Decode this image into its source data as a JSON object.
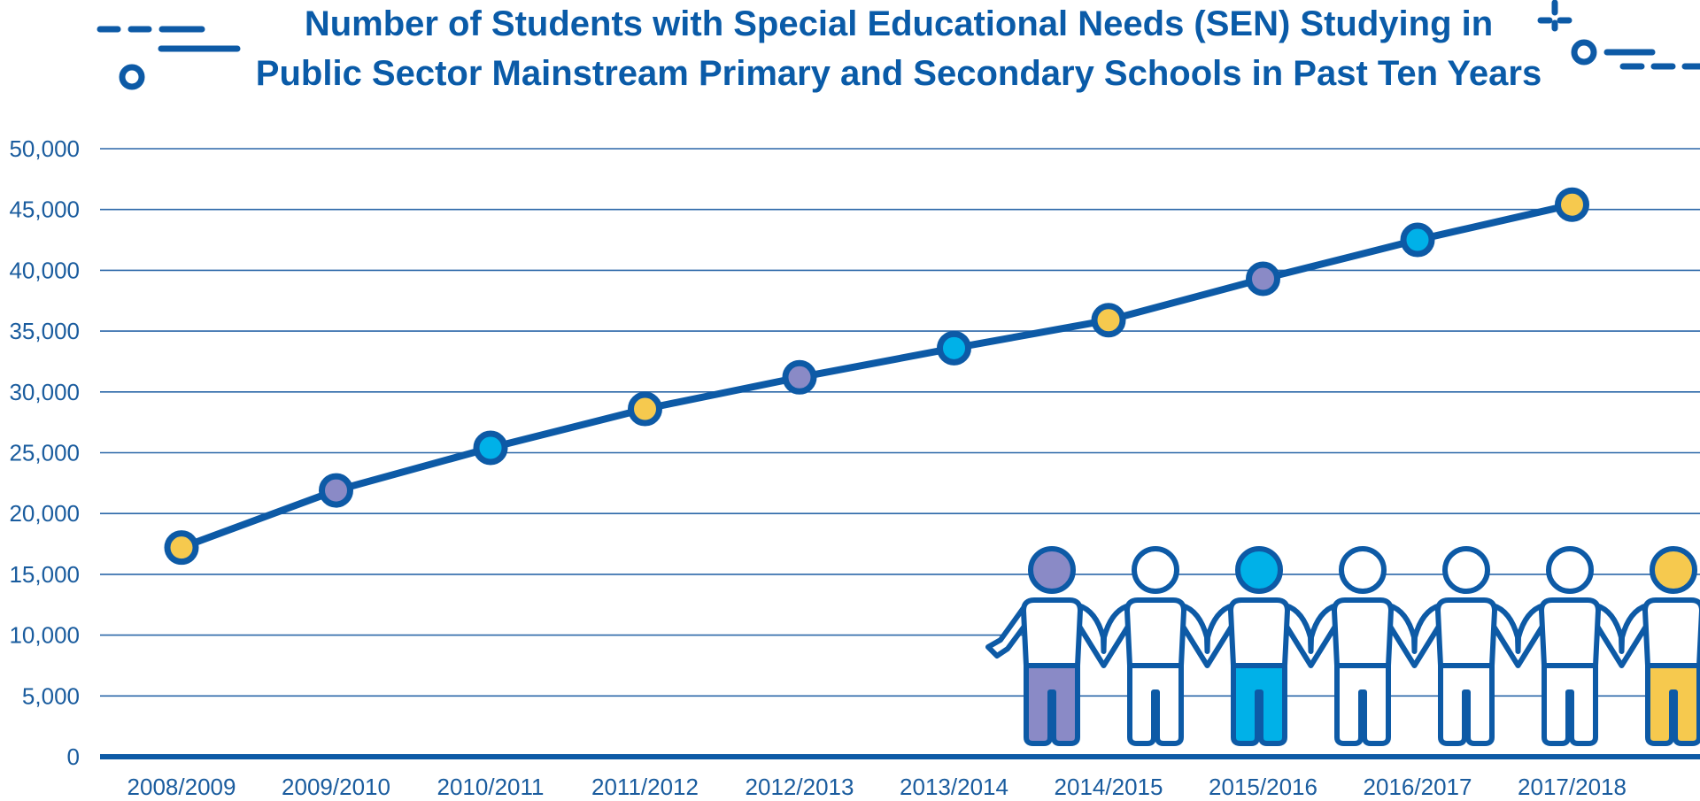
{
  "colors": {
    "navy": "#0d5aa6",
    "grid": "#2b67a8",
    "purple": "#8a8ac6",
    "cyan": "#00b1e8",
    "yellow": "#f6c94e",
    "white": "#ffffff"
  },
  "chart_data": {
    "type": "line",
    "title": "Number of Students with Special Educational Needs (SEN) Studying in Public Sector Mainstream Primary and Secondary Schools in Past Ten Years",
    "title_lines": [
      "Number of Students with Special Educational Needs (SEN) Studying in",
      "Public Sector Mainstream Primary and Secondary Schools in Past Ten Years"
    ],
    "categories": [
      "2008/2009",
      "2009/2010",
      "2010/2011",
      "2011/2012",
      "2012/2013",
      "2013/2014",
      "2014/2015",
      "2015/2016",
      "2016/2017",
      "2017/2018"
    ],
    "values": [
      17200,
      21900,
      25400,
      28600,
      31200,
      33600,
      35900,
      39300,
      42500,
      45400
    ],
    "marker_colors": [
      "yellow",
      "purple",
      "cyan",
      "yellow",
      "purple",
      "cyan",
      "yellow",
      "purple",
      "cyan",
      "yellow"
    ],
    "ylim": [
      0,
      50000
    ],
    "y_ticks": [
      "0",
      "5,000",
      "10,000",
      "15,000",
      "20,000",
      "25,000",
      "30,000",
      "35,000",
      "40,000",
      "45,000",
      "50,000"
    ],
    "grid": true,
    "xlabel": "",
    "ylabel": ""
  },
  "figures": {
    "head_colors": [
      "purple",
      "white",
      "cyan",
      "white",
      "white",
      "white",
      "yellow"
    ],
    "leg_colors": [
      "purple",
      "white",
      "cyan",
      "white",
      "white",
      "white",
      "yellow"
    ]
  }
}
